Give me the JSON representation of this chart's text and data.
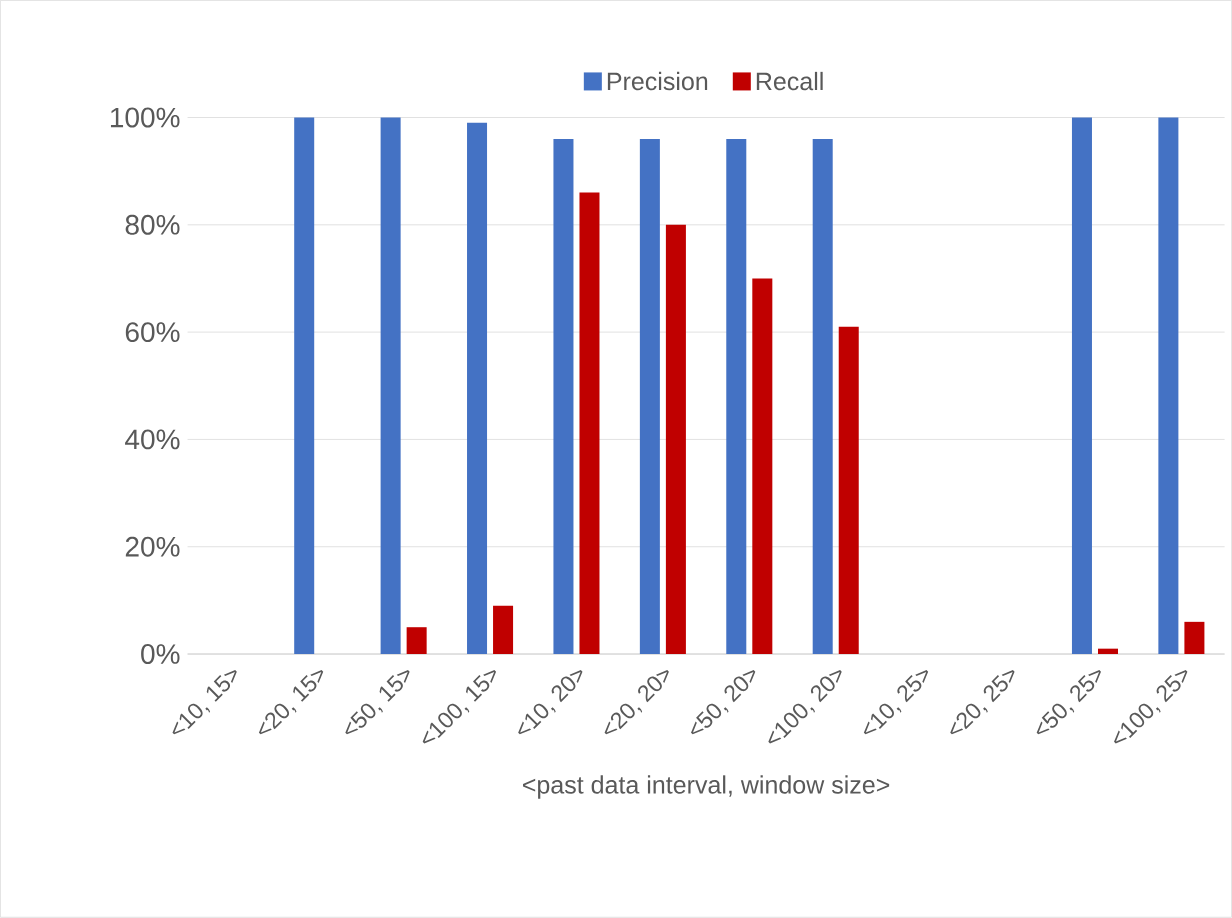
{
  "chart_data": {
    "type": "bar",
    "xlabel": "<past data interval, window size>",
    "categories": [
      "<10, 15>",
      "<20, 15>",
      "<50, 15>",
      "<100, 15>",
      "<10, 20>",
      "<20, 20>",
      "<50, 20>",
      "<100, 20>",
      "<10, 25>",
      "<20, 25>",
      "<50, 25>",
      "<100, 25>"
    ],
    "series": [
      {
        "name": "Precision",
        "color": "#4472c4",
        "values": [
          0,
          100,
          100,
          99,
          96,
          96,
          96,
          96,
          0,
          0,
          100,
          100
        ]
      },
      {
        "name": "Recall",
        "color": "#c00000",
        "values": [
          0,
          0,
          5,
          9,
          86,
          80,
          70,
          61,
          0,
          0,
          1,
          6
        ]
      }
    ],
    "ylim": [
      0,
      100
    ],
    "yticks": [
      {
        "value": 0,
        "label": "0%"
      },
      {
        "value": 20,
        "label": "20%"
      },
      {
        "value": 40,
        "label": "40%"
      },
      {
        "value": 60,
        "label": "60%"
      },
      {
        "value": 80,
        "label": "80%"
      },
      {
        "value": 100,
        "label": "100%"
      }
    ],
    "grid": "y",
    "legend": "top"
  }
}
